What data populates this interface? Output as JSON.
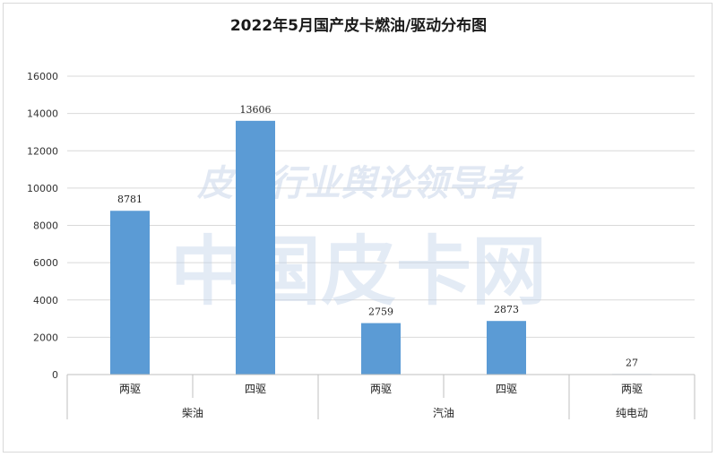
{
  "chart_data": {
    "type": "bar",
    "title": "2022年5月国产皮卡燃油/驱动分布图",
    "xlabel": "",
    "ylabel": "",
    "ylim": [
      0,
      16000
    ],
    "yticks": [
      0,
      2000,
      4000,
      6000,
      8000,
      10000,
      12000,
      14000,
      16000
    ],
    "grid": true,
    "bar_color": "#5b9bd5",
    "groups": [
      {
        "name": "柴油",
        "categories": [
          "两驱",
          "四驱"
        ]
      },
      {
        "name": "汽油",
        "categories": [
          "两驱",
          "四驱"
        ]
      },
      {
        "name": "纯电动",
        "categories": [
          "两驱"
        ]
      }
    ],
    "categories": [
      "两驱",
      "四驱",
      "两驱",
      "四驱",
      "两驱"
    ],
    "values": [
      8781,
      13606,
      2759,
      2873,
      27
    ],
    "data_labels": [
      "8781",
      "13606",
      "2759",
      "2873",
      "27"
    ]
  },
  "watermark": {
    "line1": "皮卡行业舆论领导者",
    "line2": "中国皮卡网"
  }
}
